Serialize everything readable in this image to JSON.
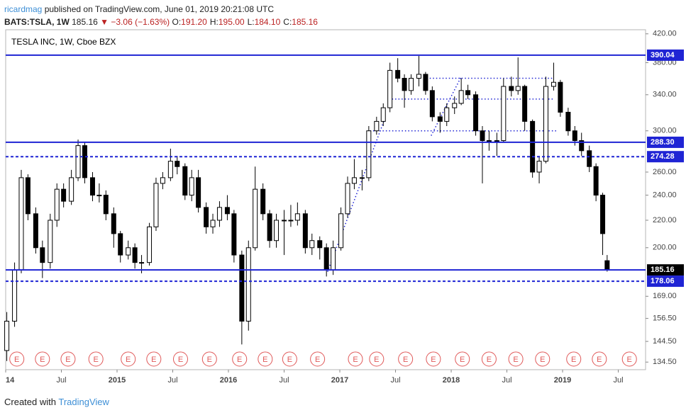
{
  "header": {
    "author": "ricardmag",
    "published": "published on TradingView.com, June 01, 2019 20:21:08 UTC",
    "symbol": "BATS:TSLA, 1W",
    "last": "185.16",
    "arrow": "▼",
    "change": "−3.06 (−1.63%)",
    "ohlc": [
      "O:",
      "191.20",
      "H:",
      "195.00",
      "L:",
      "184.10",
      "C:",
      "185.16"
    ]
  },
  "footer": {
    "created": "Created with",
    "brand": "TradingView"
  },
  "chart_data": {
    "type": "candlestick",
    "title": "TESLA INC, 1W, Cboe BZX",
    "log": true,
    "xlim": [
      2014,
      2019.745
    ],
    "ylim": [
      131,
      426
    ],
    "xticks": [
      {
        "value": 2014,
        "label": "14"
      },
      {
        "value": 2014.5,
        "label": "Jul"
      },
      2015,
      {
        "value": 2015.5,
        "label": "Jul"
      },
      2016,
      {
        "value": 2016.5,
        "label": "Jul"
      },
      2017,
      {
        "value": 2017.5,
        "label": "Jul"
      },
      2018,
      {
        "value": 2018.5,
        "label": "Jul"
      },
      2019,
      {
        "value": 2019.5,
        "label": "Jul"
      }
    ],
    "yticks": [
      {
        "value": 134.5,
        "label": "134.50"
      },
      {
        "value": 144.5,
        "label": "144.50"
      },
      {
        "value": 156.5,
        "label": "156.50"
      },
      {
        "value": 169,
        "label": "169.00"
      },
      {
        "value": 200,
        "label": "200.00"
      },
      {
        "value": 220,
        "label": "220.00"
      },
      {
        "value": 240,
        "label": "240.00"
      },
      {
        "value": 260,
        "label": "260.00"
      },
      {
        "value": 300,
        "label": "300.00"
      },
      {
        "value": 340,
        "label": "340.00"
      },
      {
        "value": 380,
        "label": "380.00"
      },
      {
        "value": 420,
        "label": "420.00"
      }
    ],
    "levels": [
      {
        "value": 390.04,
        "style": "solid",
        "color": "#1f24d4"
      },
      {
        "value": 288.3,
        "label": "288.30",
        "style": "solid",
        "color": "#1f24d4"
      },
      {
        "value": 274.28,
        "style": "dashed",
        "color": "#1f24d4"
      },
      {
        "value": 185.16,
        "style": "solid",
        "color": "#1f24d4",
        "box": "#000000"
      },
      {
        "value": 178.06,
        "style": "dashed",
        "color": "#1f24d4"
      }
    ],
    "trendlines": [
      [
        2016.89,
        184,
        2017.41,
        315
      ],
      [
        2017.27,
        300,
        2018.95,
        300
      ],
      [
        2017.44,
        335,
        2018.92,
        335
      ],
      [
        2017.75,
        360,
        2018.92,
        360
      ],
      [
        2017.82,
        295,
        2018.09,
        362
      ]
    ],
    "up_color": "#ffffff",
    "down_color": "#000000",
    "x": [
      2014.01,
      2014.08,
      2014.14,
      2014.2,
      2014.27,
      2014.33,
      2014.4,
      2014.46,
      2014.52,
      2014.59,
      2014.65,
      2014.71,
      2014.78,
      2014.84,
      2014.9,
      2014.97,
      2015.03,
      2015.1,
      2015.16,
      2015.22,
      2015.29,
      2015.35,
      2015.41,
      2015.48,
      2015.54,
      2015.61,
      2015.67,
      2015.73,
      2015.8,
      2015.86,
      2015.92,
      2015.99,
      2016.05,
      2016.12,
      2016.18,
      2016.24,
      2016.31,
      2016.37,
      2016.43,
      2016.5,
      2016.56,
      2016.62,
      2016.69,
      2016.75,
      2016.82,
      2016.88,
      2016.94,
      2017.01,
      2017.07,
      2017.13,
      2017.2,
      2017.26,
      2017.33,
      2017.39,
      2017.45,
      2017.52,
      2017.58,
      2017.64,
      2017.71,
      2017.77,
      2017.83,
      2017.9,
      2017.96,
      2018.03,
      2018.09,
      2018.15,
      2018.22,
      2018.28,
      2018.34,
      2018.41,
      2018.47,
      2018.54,
      2018.6,
      2018.66,
      2018.73,
      2018.79,
      2018.85,
      2018.92,
      2018.98,
      2019.05,
      2019.11,
      2019.17,
      2019.24,
      2019.3,
      2019.36,
      2019.4
    ],
    "candles": [
      [
        140,
        160,
        135,
        155
      ],
      [
        155,
        190,
        152,
        185
      ],
      [
        185,
        262,
        183,
        255
      ],
      [
        255,
        258,
        220,
        225
      ],
      [
        225,
        230,
        196,
        200
      ],
      [
        200,
        205,
        180,
        190
      ],
      [
        190,
        225,
        186,
        220
      ],
      [
        220,
        250,
        215,
        245
      ],
      [
        245,
        250,
        230,
        235
      ],
      [
        235,
        262,
        232,
        255
      ],
      [
        255,
        291,
        252,
        285
      ],
      [
        285,
        288,
        250,
        255
      ],
      [
        255,
        260,
        235,
        240
      ],
      [
        240,
        250,
        234,
        240
      ],
      [
        240,
        244,
        220,
        225
      ],
      [
        225,
        230,
        200,
        210
      ],
      [
        210,
        212,
        190,
        195
      ],
      [
        195,
        205,
        192,
        200
      ],
      [
        200,
        203,
        186,
        190
      ],
      [
        190,
        195,
        183,
        190
      ],
      [
        190,
        218,
        188,
        215
      ],
      [
        215,
        255,
        212,
        250
      ],
      [
        250,
        260,
        245,
        255
      ],
      [
        255,
        282,
        252,
        270
      ],
      [
        270,
        275,
        258,
        265
      ],
      [
        265,
        268,
        236,
        240
      ],
      [
        240,
        262,
        235,
        255
      ],
      [
        255,
        262,
        226,
        230
      ],
      [
        230,
        234,
        210,
        215
      ],
      [
        215,
        225,
        210,
        220
      ],
      [
        220,
        235,
        215,
        230
      ],
      [
        230,
        240,
        220,
        225
      ],
      [
        225,
        228,
        190,
        195
      ],
      [
        195,
        198,
        143,
        155
      ],
      [
        155,
        205,
        150,
        200
      ],
      [
        200,
        265,
        198,
        245
      ],
      [
        245,
        250,
        220,
        225
      ],
      [
        225,
        228,
        200,
        205
      ],
      [
        205,
        225,
        200,
        220
      ],
      [
        220,
        228,
        195,
        220
      ],
      [
        220,
        232,
        215,
        220
      ],
      [
        220,
        234,
        216,
        225
      ],
      [
        225,
        228,
        196,
        200
      ],
      [
        200,
        210,
        195,
        205
      ],
      [
        205,
        208,
        192,
        200
      ],
      [
        200,
        203,
        181,
        185
      ],
      [
        185,
        205,
        182,
        200
      ],
      [
        200,
        230,
        198,
        225
      ],
      [
        225,
        256,
        222,
        250
      ],
      [
        250,
        272,
        245,
        255
      ],
      [
        255,
        262,
        244,
        255
      ],
      [
        255,
        305,
        252,
        300
      ],
      [
        300,
        315,
        296,
        310
      ],
      [
        310,
        330,
        305,
        325
      ],
      [
        325,
        380,
        320,
        370
      ],
      [
        370,
        386,
        355,
        360
      ],
      [
        360,
        365,
        325,
        345
      ],
      [
        345,
        365,
        340,
        360
      ],
      [
        360,
        389,
        350,
        365
      ],
      [
        365,
        368,
        340,
        345
      ],
      [
        345,
        350,
        310,
        315
      ],
      [
        315,
        320,
        298,
        310
      ],
      [
        310,
        330,
        305,
        325
      ],
      [
        325,
        338,
        318,
        330
      ],
      [
        330,
        360,
        328,
        345
      ],
      [
        345,
        352,
        335,
        340
      ],
      [
        340,
        344,
        295,
        300
      ],
      [
        300,
        305,
        250,
        290
      ],
      [
        290,
        300,
        280,
        290
      ],
      [
        290,
        298,
        275,
        290
      ],
      [
        290,
        360,
        288,
        350
      ],
      [
        350,
        362,
        338,
        345
      ],
      [
        345,
        387,
        340,
        350
      ],
      [
        350,
        352,
        300,
        310
      ],
      [
        310,
        312,
        255,
        260
      ],
      [
        260,
        275,
        250,
        270
      ],
      [
        270,
        362,
        268,
        350
      ],
      [
        350,
        380,
        345,
        355
      ],
      [
        355,
        358,
        315,
        320
      ],
      [
        320,
        325,
        295,
        300
      ],
      [
        300,
        305,
        285,
        290
      ],
      [
        290,
        298,
        275,
        280
      ],
      [
        280,
        285,
        260,
        265
      ],
      [
        265,
        268,
        235,
        240
      ],
      [
        240,
        242,
        195,
        210
      ],
      [
        191.2,
        195,
        184.1,
        185.16
      ]
    ],
    "earnings_label": "E",
    "earnings_color": "#e05a5a",
    "earnings": [
      2014.1,
      2014.33,
      2014.56,
      2014.81,
      2015.1,
      2015.33,
      2015.57,
      2015.83,
      2016.1,
      2016.33,
      2016.55,
      2016.8,
      2017.14,
      2017.33,
      2017.59,
      2017.84,
      2018.1,
      2018.34,
      2018.58,
      2018.82,
      2019.1,
      2019.33,
      2019.6
    ]
  }
}
